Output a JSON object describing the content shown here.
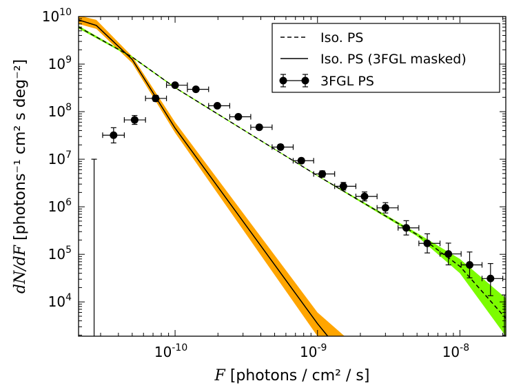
{
  "chart_data": {
    "type": "line",
    "xscale": "log",
    "yscale": "log",
    "xlim": [
      2.1e-11,
      2.1e-08
    ],
    "ylim": [
      1900,
      10000000000.0
    ],
    "xlabel": {
      "math": "F",
      "text": "[photons / cm² / s]"
    },
    "ylabel": {
      "math": "dN/dF",
      "text": "[photons⁻¹ cm² s deg⁻²]"
    },
    "xticks": [
      {
        "value": 1e-10,
        "label": "10",
        "exp": "-10"
      },
      {
        "value": 1e-09,
        "label": "10",
        "exp": "-9"
      },
      {
        "value": 1e-08,
        "label": "10",
        "exp": "-8"
      }
    ],
    "yticks": [
      {
        "value": 10000.0,
        "label": "10",
        "exp": "4"
      },
      {
        "value": 100000.0,
        "label": "10",
        "exp": "5"
      },
      {
        "value": 1000000.0,
        "label": "10",
        "exp": "6"
      },
      {
        "value": 10000000.0,
        "label": "10",
        "exp": "7"
      },
      {
        "value": 100000000.0,
        "label": "10",
        "exp": "8"
      },
      {
        "value": 1000000000.0,
        "label": "10",
        "exp": "9"
      },
      {
        "value": 10000000000.0,
        "label": "10",
        "exp": "10"
      }
    ],
    "legend_position": "top-right",
    "series": [
      {
        "name": "Iso. PS",
        "style": "dashed",
        "color": "#000000",
        "band_color": "#7CFC00",
        "points": [
          [
            2.1e-11,
            6000000000.0
          ],
          [
            5e-11,
            1400000000.0
          ],
          [
            1e-10,
            320000000.0
          ],
          [
            1e-09,
            4500000.0
          ],
          [
            5e-09,
            260000.0
          ],
          [
            1e-08,
            56000.0
          ],
          [
            2.1e-08,
            4500.0
          ]
        ],
        "band": [
          {
            "x": 2.1e-11,
            "lo": 5600000000.0,
            "hi": 6400000000.0
          },
          {
            "x": 5e-11,
            "lo": 1350000000.0,
            "hi": 1450000000.0
          },
          {
            "x": 1e-10,
            "lo": 310000000.0,
            "hi": 330000000.0
          },
          {
            "x": 1e-09,
            "lo": 4400000.0,
            "hi": 4600000.0
          },
          {
            "x": 5e-09,
            "lo": 240000.0,
            "hi": 280000.0
          },
          {
            "x": 1e-08,
            "lo": 40000.0,
            "hi": 80000.0
          },
          {
            "x": 2.1e-08,
            "lo": 1900.0,
            "hi": 12000.0
          }
        ]
      },
      {
        "name": "Iso. PS (3FGL masked)",
        "style": "solid",
        "color": "#000000",
        "band_color": "#FFA500",
        "points": [
          [
            2.1e-11,
            8500000000.0
          ],
          [
            2.8e-11,
            6500000000.0
          ],
          [
            5e-11,
            1250000000.0
          ],
          [
            1e-10,
            45000000.0
          ],
          [
            1e-09,
            3500.0
          ],
          [
            1.18e-09,
            1900.0
          ]
        ],
        "band": [
          {
            "x": 2.1e-11,
            "lo": 7000000000.0,
            "hi": 10500000000.0
          },
          {
            "x": 2.8e-11,
            "lo": 5500000000.0,
            "hi": 8500000000.0
          },
          {
            "x": 5e-11,
            "lo": 1050000000.0,
            "hi": 1450000000.0
          },
          {
            "x": 1e-10,
            "lo": 36000000.0,
            "hi": 60000000.0
          },
          {
            "x": 1e-09,
            "lo": 1900.0,
            "hi": 6000.0
          },
          {
            "x": 1.55e-09,
            "lo": 1900.0,
            "hi": 1900.0
          }
        ]
      },
      {
        "name": "3FGL PS",
        "style": "markers",
        "color": "#000000",
        "points": [
          {
            "x": 2.7e-11,
            "y": 1,
            "ylo": 1,
            "yhi": 10000000.0,
            "upper_limit_line": true
          },
          {
            "x": 3.7e-11,
            "y": 32000000.0,
            "xlo": 3.1e-11,
            "xhi": 4.4e-11,
            "ylo": 22000000.0,
            "yhi": 46000000.0
          },
          {
            "x": 5.2e-11,
            "y": 67000000.0,
            "xlo": 4.4e-11,
            "xhi": 6.2e-11,
            "ylo": 54000000.0,
            "yhi": 83000000.0
          },
          {
            "x": 7.3e-11,
            "y": 190000000.0,
            "xlo": 6.2e-11,
            "xhi": 8.7e-11,
            "ylo": 165000000.0,
            "yhi": 220000000.0
          },
          {
            "x": 1e-10,
            "y": 360000000.0,
            "xlo": 8.7e-11,
            "xhi": 1.22e-10,
            "ylo": 325000000.0,
            "yhi": 400000000.0
          },
          {
            "x": 1.4e-10,
            "y": 295000000.0,
            "xlo": 1.22e-10,
            "xhi": 1.72e-10,
            "ylo": 270000000.0,
            "yhi": 320000000.0
          },
          {
            "x": 1.98e-10,
            "y": 133000000.0,
            "xlo": 1.72e-10,
            "xhi": 2.42e-10,
            "ylo": 120000000.0,
            "yhi": 147000000.0
          },
          {
            "x": 2.78e-10,
            "y": 78000000.0,
            "xlo": 2.42e-10,
            "xhi": 3.4e-10,
            "ylo": 70000000.0,
            "yhi": 87000000.0
          },
          {
            "x": 3.9e-10,
            "y": 47000000.0,
            "xlo": 3.4e-10,
            "xhi": 4.8e-10,
            "ylo": 42000000.0,
            "yhi": 53000000.0
          },
          {
            "x": 5.5e-10,
            "y": 18000000.0,
            "xlo": 4.8e-10,
            "xhi": 6.75e-10,
            "ylo": 16000000.0,
            "yhi": 20500000.0
          },
          {
            "x": 7.7e-10,
            "y": 9300000.0,
            "xlo": 6.75e-10,
            "xhi": 9.4e-10,
            "ylo": 8200000.0,
            "yhi": 10500000.0
          },
          {
            "x": 1.08e-09,
            "y": 4900000.0,
            "xlo": 9.4e-10,
            "xhi": 1.32e-09,
            "ylo": 4200000.0,
            "yhi": 5700000.0
          },
          {
            "x": 1.52e-09,
            "y": 2700000.0,
            "xlo": 1.32e-09,
            "xhi": 1.86e-09,
            "ylo": 2250000.0,
            "yhi": 3250000.0
          },
          {
            "x": 2.14e-09,
            "y": 1650000.0,
            "xlo": 1.86e-09,
            "xhi": 2.62e-09,
            "ylo": 1330000.0,
            "yhi": 2050000.0
          },
          {
            "x": 3e-09,
            "y": 950000.0,
            "xlo": 2.62e-09,
            "xhi": 3.68e-09,
            "ylo": 740000.0,
            "yhi": 1220000.0
          },
          {
            "x": 4.2e-09,
            "y": 360000.0,
            "xlo": 3.68e-09,
            "xhi": 5.15e-09,
            "ylo": 255000.0,
            "yhi": 510000.0
          },
          {
            "x": 5.9e-09,
            "y": 170000.0,
            "xlo": 5.15e-09,
            "xhi": 7.25e-09,
            "ylo": 107000.0,
            "yhi": 270000.0
          },
          {
            "x": 8.3e-09,
            "y": 102000.0,
            "xlo": 7.25e-09,
            "xhi": 1.02e-08,
            "ylo": 60000.0,
            "yhi": 172000.0
          },
          {
            "x": 1.17e-08,
            "y": 60000.0,
            "xlo": 1.02e-08,
            "xhi": 1.43e-08,
            "ylo": 32000.0,
            "yhi": 112000.0
          },
          {
            "x": 1.64e-08,
            "y": 31000.0,
            "xlo": 1.43e-08,
            "xhi": 2e-08,
            "ylo": 13500.0,
            "yhi": 64000.0
          },
          {
            "x": 2.1e-08,
            "y": 1,
            "ylo": 1900.0,
            "yhi": 14000.0,
            "edge_bar": true
          }
        ]
      }
    ]
  }
}
